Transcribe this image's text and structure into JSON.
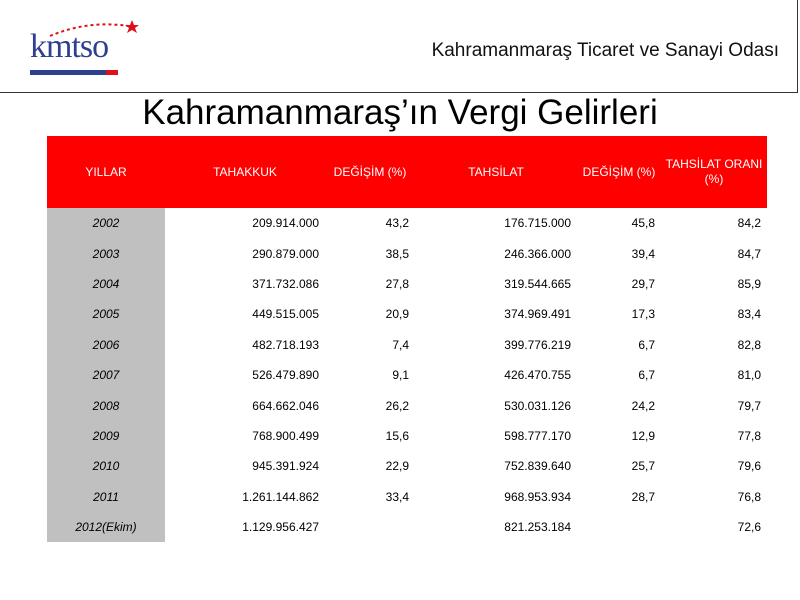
{
  "header": {
    "logo_text": "kmtso",
    "org_name": "Kahramanmaraş Ticaret ve Sanayi Odası"
  },
  "title": "Kahramanmaraş’ın Vergi Gelirleri",
  "colors": {
    "header_bg": "#ff0000",
    "year_col_bg": "#c0c0c0",
    "logo": "#2d3f8f"
  },
  "table": {
    "columns": [
      "YILLAR",
      "TAHAKKUK",
      "DEĞİŞİM (%)",
      "TAHSİLAT",
      "DEĞİŞİM (%)",
      "TAHSİLAT ORANI (%)"
    ],
    "rows": [
      [
        "2002",
        "209.914.000",
        "43,2",
        "176.715.000",
        "45,8",
        "84,2"
      ],
      [
        "2003",
        "290.879.000",
        "38,5",
        "246.366.000",
        "39,4",
        "84,7"
      ],
      [
        "2004",
        "371.732.086",
        "27,8",
        "319.544.665",
        "29,7",
        "85,9"
      ],
      [
        "2005",
        "449.515.005",
        "20,9",
        "374.969.491",
        "17,3",
        "83,4"
      ],
      [
        "2006",
        "482.718.193",
        "7,4",
        "399.776.219",
        "6,7",
        "82,8"
      ],
      [
        "2007",
        "526.479.890",
        "9,1",
        "426.470.755",
        "6,7",
        "81,0"
      ],
      [
        "2008",
        "664.662.046",
        "26,2",
        "530.031.126",
        "24,2",
        "79,7"
      ],
      [
        "2009",
        "768.900.499",
        "15,6",
        "598.777.170",
        "12,9",
        "77,8"
      ],
      [
        "2010",
        "945.391.924",
        "22,9",
        "752.839.640",
        "25,7",
        "79,6"
      ],
      [
        "2011",
        "1.261.144.862",
        "33,4",
        "968.953.934",
        "28,7",
        "76,8"
      ],
      [
        "2012(Ekim)",
        "1.129.956.427",
        "",
        "821.253.184",
        "",
        "72,6"
      ]
    ]
  }
}
